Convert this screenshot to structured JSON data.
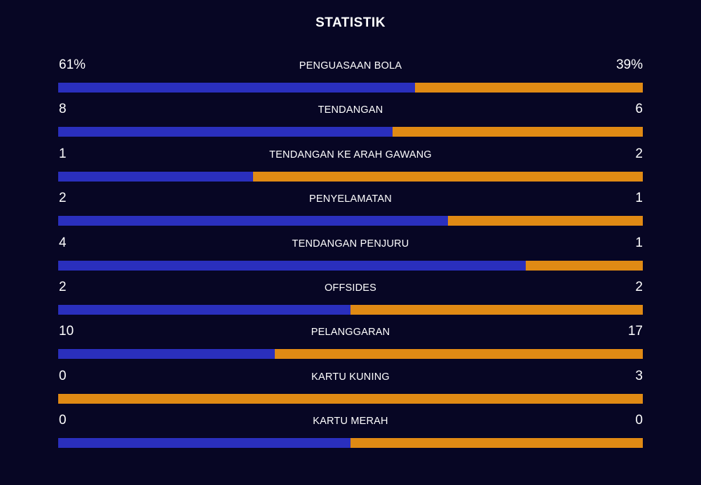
{
  "header": {
    "title": "STATISTIK"
  },
  "colors": {
    "home": "#2a2fbd",
    "away": "#e08a14",
    "background": "#070624"
  },
  "stats": [
    {
      "label": "PENGUASAAN BOLA",
      "home_display": "61%",
      "away_display": "39%",
      "home_value": 61,
      "away_value": 39
    },
    {
      "label": "TENDANGAN",
      "home_display": "8",
      "away_display": "6",
      "home_value": 8,
      "away_value": 6
    },
    {
      "label": "TENDANGAN KE ARAH GAWANG",
      "home_display": "1",
      "away_display": "2",
      "home_value": 1,
      "away_value": 2
    },
    {
      "label": "PENYELAMATAN",
      "home_display": "2",
      "away_display": "1",
      "home_value": 2,
      "away_value": 1
    },
    {
      "label": "TENDANGAN PENJURU",
      "home_display": "4",
      "away_display": "1",
      "home_value": 4,
      "away_value": 1
    },
    {
      "label": "OFFSIDES",
      "home_display": "2",
      "away_display": "2",
      "home_value": 2,
      "away_value": 2
    },
    {
      "label": "PELANGGARAN",
      "home_display": "10",
      "away_display": "17",
      "home_value": 10,
      "away_value": 17
    },
    {
      "label": "KARTU KUNING",
      "home_display": "0",
      "away_display": "3",
      "home_value": 0,
      "away_value": 3
    },
    {
      "label": "KARTU MERAH",
      "home_display": "0",
      "away_display": "0",
      "home_value": 0,
      "away_value": 0
    }
  ]
}
